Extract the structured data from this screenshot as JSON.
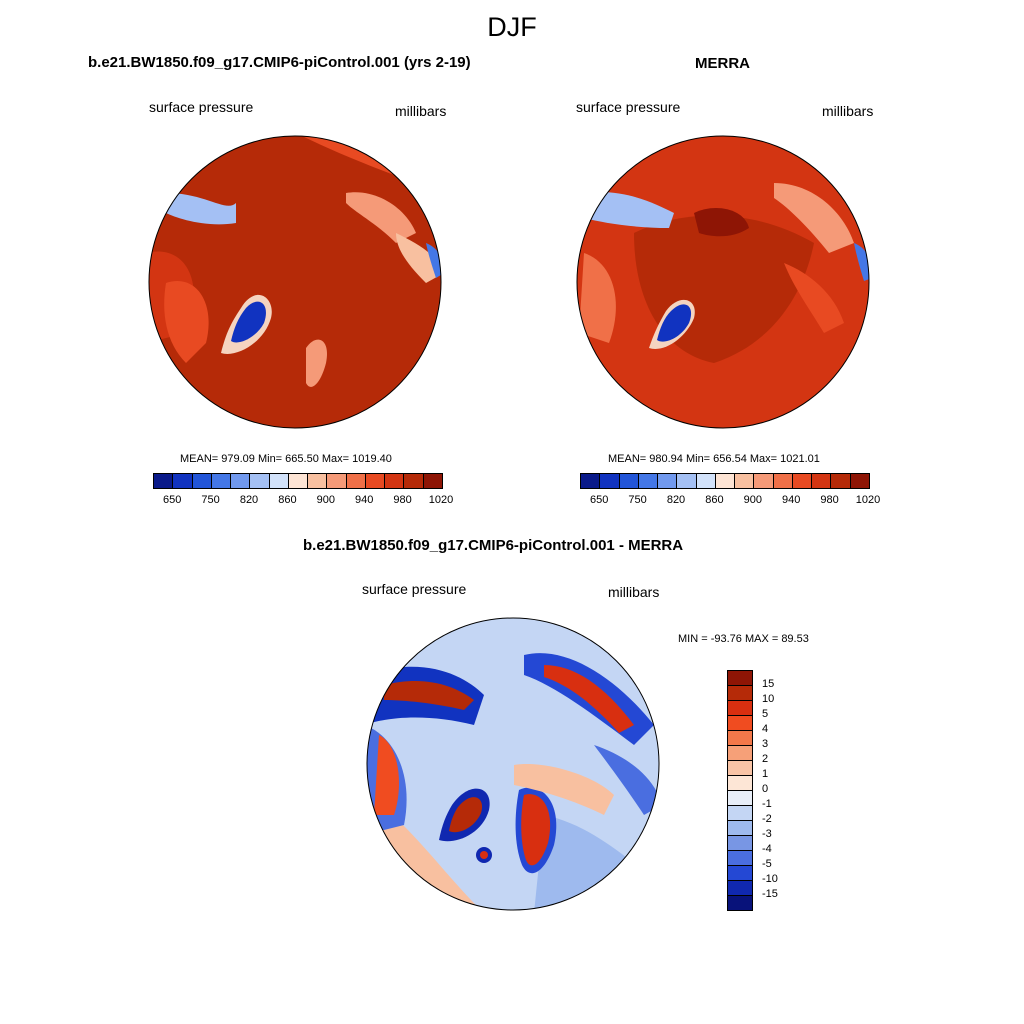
{
  "title": "DJF",
  "panels": [
    {
      "title": "b.e21.BW1850.f09_g17.CMIP6-piControl.001 (yrs 2-19)",
      "left_label": "surface pressure",
      "right_label": "millibars",
      "stats": "MEAN= 979.09  Min= 665.50  Max= 1019.40"
    },
    {
      "title": "MERRA",
      "left_label": "surface pressure",
      "right_label": "millibars",
      "stats": "MEAN= 980.94  Min= 656.54  Max= 1021.01"
    }
  ],
  "abs_colorbar": {
    "ticks": [
      "650",
      "750",
      "820",
      "860",
      "900",
      "940",
      "980",
      "1020"
    ],
    "colors": [
      "#0a1a8a",
      "#1133c0",
      "#2255d8",
      "#4477e6",
      "#7199ee",
      "#a4c0f4",
      "#d2e2fa",
      "#fde4d4",
      "#f8c0a0",
      "#f59a78",
      "#f07048",
      "#e84a22",
      "#d33512",
      "#b52a08",
      "#8e1505"
    ]
  },
  "diff_panel": {
    "title": "b.e21.BW1850.f09_g17.CMIP6-piControl.001 - MERRA",
    "left_label": "surface pressure",
    "right_label": "millibars",
    "stats": "MIN = -93.76 MAX =  89.53"
  },
  "diff_colorbar": {
    "ticks": [
      "15",
      "10",
      "5",
      "4",
      "3",
      "2",
      "1",
      "0",
      "-1",
      "-2",
      "-3",
      "-4",
      "-5",
      "-10",
      "-15"
    ],
    "colors": [
      "#8e1505",
      "#b52a08",
      "#d82f10",
      "#f04c20",
      "#f3784a",
      "#f6a078",
      "#f9c4a6",
      "#fde6d6",
      "#e8eef8",
      "#c4d6f4",
      "#9ebaee",
      "#7896e4",
      "#4a6ee0",
      "#2448d4",
      "#1028b0",
      "#08127a"
    ]
  }
}
